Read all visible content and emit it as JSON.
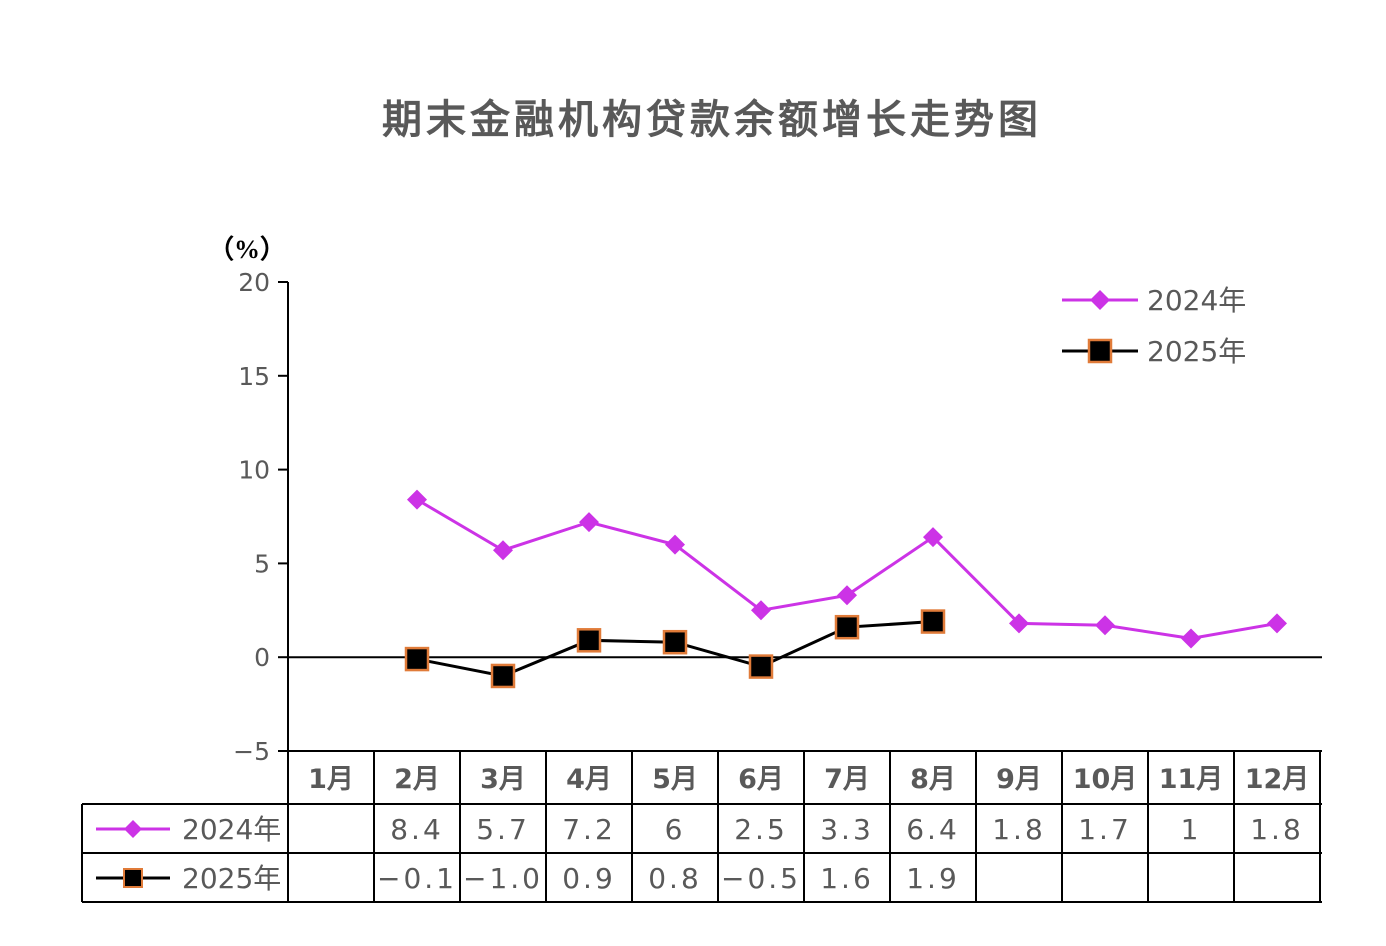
{
  "chart_data": {
    "type": "line",
    "title": "期末金融机构贷款余额增长走势图",
    "y_unit": "（%）",
    "ylim": [
      -5,
      20
    ],
    "yticks": [
      "20",
      "15",
      "10",
      "5",
      "0",
      "−5"
    ],
    "categories": [
      "1月",
      "2月",
      "3月",
      "4月",
      "5月",
      "6月",
      "7月",
      "8月",
      "9月",
      "10月",
      "11月",
      "12月"
    ],
    "series": [
      {
        "name": "2024年",
        "color": "#CC33E6",
        "marker": "diamond",
        "values": [
          null,
          8.4,
          5.7,
          7.2,
          6,
          2.5,
          3.3,
          6.4,
          1.8,
          1.7,
          1,
          1.8
        ],
        "labels": [
          "",
          "8.4",
          "5.7",
          "7.2",
          "6",
          "2.5",
          "3.3",
          "6.4",
          "1.8",
          "1.7",
          "1",
          "1.8"
        ]
      },
      {
        "name": "2025年",
        "color": "#000000",
        "marker": "square",
        "marker_edge_color": "#E07B39",
        "values": [
          null,
          -0.1,
          -1.0,
          0.9,
          0.8,
          -0.5,
          1.6,
          1.9,
          null,
          null,
          null,
          null
        ],
        "labels": [
          "",
          "−0.1",
          "−1.0",
          "0.9",
          "0.8",
          "−0.5",
          "1.6",
          "1.9",
          "",
          "",
          "",
          ""
        ]
      }
    ],
    "legend_position": "top-right",
    "grid": false
  }
}
